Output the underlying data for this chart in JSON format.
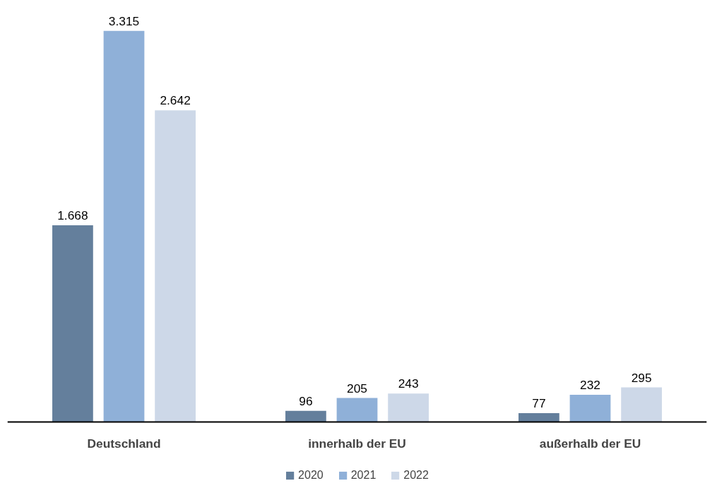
{
  "chart_data": {
    "type": "bar",
    "categories": [
      "Deutschland",
      "innerhalb der EU",
      "außerhalb der EU"
    ],
    "series": [
      {
        "name": "2020",
        "color": "#647f9c",
        "values": [
          1668,
          96,
          77
        ],
        "value_labels": [
          "1.668",
          "96",
          "77"
        ]
      },
      {
        "name": "2021",
        "color": "#8fb0d8",
        "values": [
          3315,
          205,
          232
        ],
        "value_labels": [
          "3.315",
          "205",
          "232"
        ]
      },
      {
        "name": "2022",
        "color": "#cdd8e8",
        "values": [
          2642,
          243,
          295
        ],
        "value_labels": [
          "2.642",
          "243",
          "295"
        ]
      }
    ],
    "legend": "bottom",
    "grid": false
  }
}
